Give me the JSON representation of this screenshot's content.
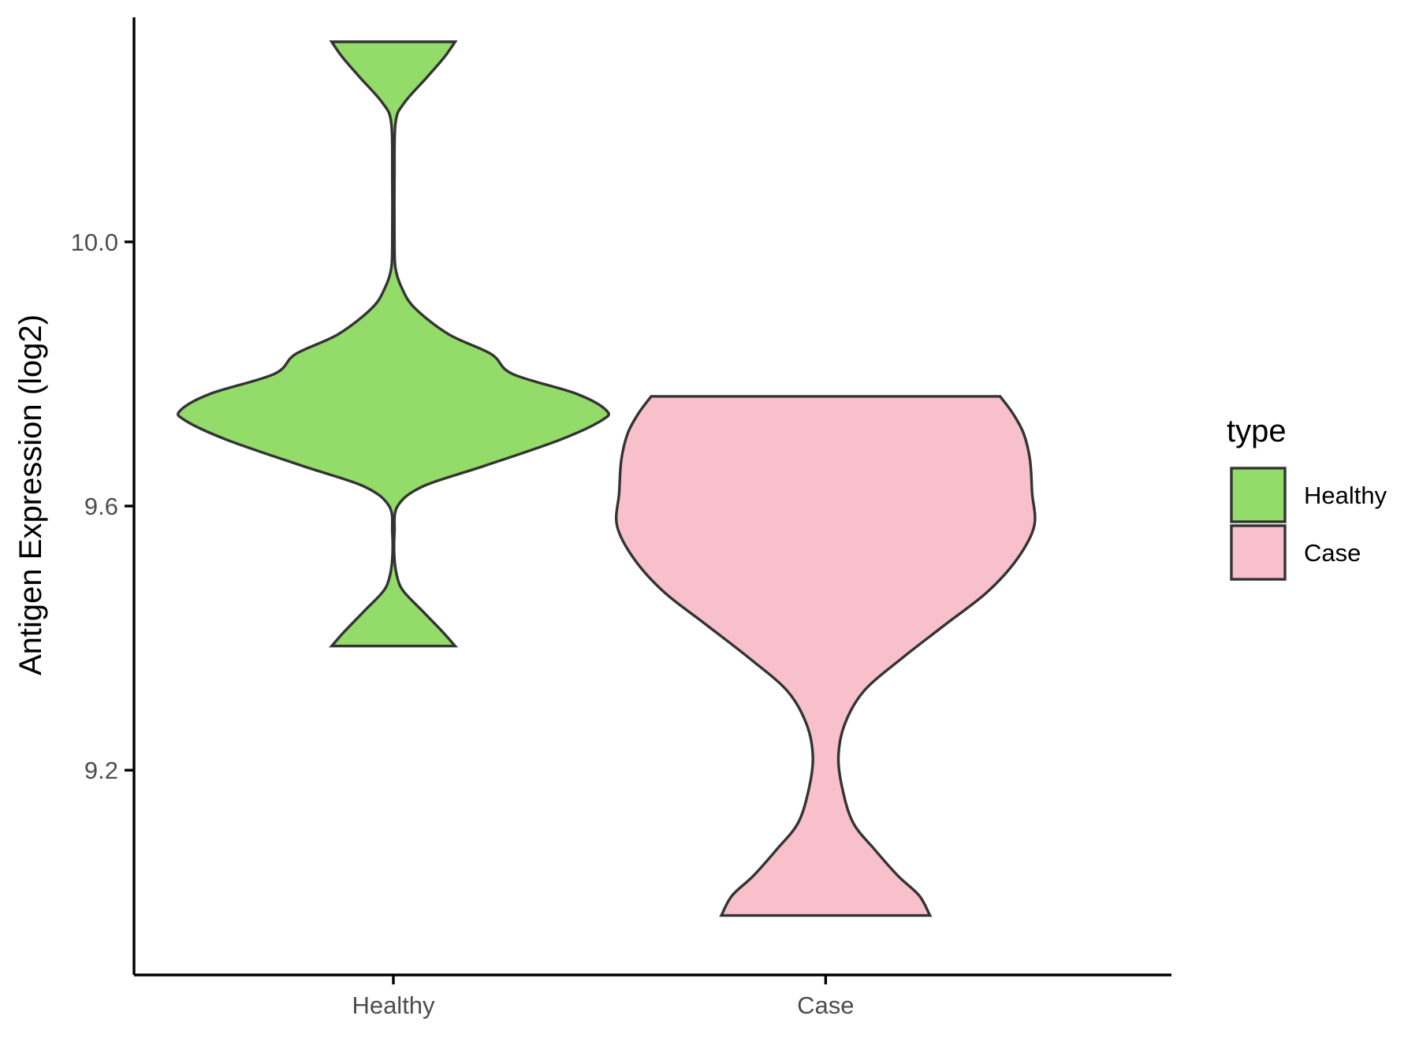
{
  "chart_data": {
    "type": "violin",
    "title": "",
    "xlabel": "",
    "ylabel": "Antigen Expression (log2)",
    "categories": [
      "Healthy",
      "Case"
    ],
    "ylim": [
      8.89,
      10.34
    ],
    "yticks": [
      9.2,
      9.6,
      10.0
    ],
    "ytick_labels": [
      "9.2",
      "9.6",
      "10.0"
    ],
    "grid": false,
    "legend": {
      "title": "type",
      "placement": "right",
      "items": [
        {
          "label": "Healthy",
          "color": "#93DC69"
        },
        {
          "label": "Case",
          "color": "#F8C0CB"
        }
      ]
    },
    "series": [
      {
        "category": "Healthy",
        "color": "#93DC69",
        "min": 9.388,
        "max": 10.303,
        "density_profile": [
          [
            9.388,
            0.29
          ],
          [
            9.41,
            0.23
          ],
          [
            9.44,
            0.14
          ],
          [
            9.47,
            0.05
          ],
          [
            9.49,
            0.02
          ],
          [
            9.52,
            0.005
          ],
          [
            9.56,
            0.005
          ],
          [
            9.6,
            0.02
          ],
          [
            9.63,
            0.14
          ],
          [
            9.66,
            0.42
          ],
          [
            9.7,
            0.78
          ],
          [
            9.73,
            0.98
          ],
          [
            9.745,
            1.0
          ],
          [
            9.77,
            0.86
          ],
          [
            9.8,
            0.56
          ],
          [
            9.83,
            0.46
          ],
          [
            9.86,
            0.26
          ],
          [
            9.9,
            0.1
          ],
          [
            9.93,
            0.04
          ],
          [
            9.96,
            0.01
          ],
          [
            10.0,
            0.005
          ],
          [
            10.1,
            0.005
          ],
          [
            10.18,
            0.01
          ],
          [
            10.21,
            0.05
          ],
          [
            10.25,
            0.16
          ],
          [
            10.28,
            0.24
          ],
          [
            10.303,
            0.29
          ]
        ]
      },
      {
        "category": "Case",
        "color": "#F8C0CB",
        "min": 8.98,
        "max": 9.766,
        "density_profile": [
          [
            8.98,
            0.49
          ],
          [
            9.01,
            0.44
          ],
          [
            9.04,
            0.34
          ],
          [
            9.08,
            0.23
          ],
          [
            9.12,
            0.13
          ],
          [
            9.17,
            0.08
          ],
          [
            9.22,
            0.06
          ],
          [
            9.27,
            0.09
          ],
          [
            9.32,
            0.18
          ],
          [
            9.37,
            0.36
          ],
          [
            9.42,
            0.56
          ],
          [
            9.47,
            0.76
          ],
          [
            9.52,
            0.9
          ],
          [
            9.57,
            0.98
          ],
          [
            9.62,
            0.97
          ],
          [
            9.67,
            0.96
          ],
          [
            9.71,
            0.93
          ],
          [
            9.74,
            0.88
          ],
          [
            9.766,
            0.82
          ]
        ]
      }
    ]
  }
}
